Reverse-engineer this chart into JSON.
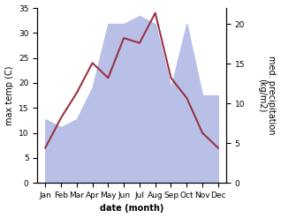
{
  "months": [
    "Jan",
    "Feb",
    "Mar",
    "Apr",
    "May",
    "Jun",
    "Jul",
    "Aug",
    "Sep",
    "Oct",
    "Nov",
    "Dec"
  ],
  "month_indices": [
    0,
    1,
    2,
    3,
    4,
    5,
    6,
    7,
    8,
    9,
    10,
    11
  ],
  "max_temp": [
    7,
    13,
    18,
    24,
    21,
    29,
    28,
    34,
    21,
    17,
    10,
    7
  ],
  "precipitation": [
    8,
    7,
    8,
    12,
    20,
    20,
    21,
    20,
    12,
    20,
    11,
    11
  ],
  "temp_ylim": [
    0,
    35
  ],
  "precip_ylim": [
    0,
    22
  ],
  "temp_color": "#993344",
  "precip_fill_color": "#b8c0e8",
  "xlabel": "date (month)",
  "ylabel_left": "max temp (C)",
  "ylabel_right": "med. precipitation\n(kg/m2)",
  "temp_yticks": [
    0,
    5,
    10,
    15,
    20,
    25,
    30,
    35
  ],
  "precip_yticks": [
    0,
    5,
    10,
    15,
    20
  ],
  "bg_color": "#ffffff",
  "xlabel_fontsize": 7,
  "ylabel_fontsize": 7,
  "tick_fontsize": 6.5
}
